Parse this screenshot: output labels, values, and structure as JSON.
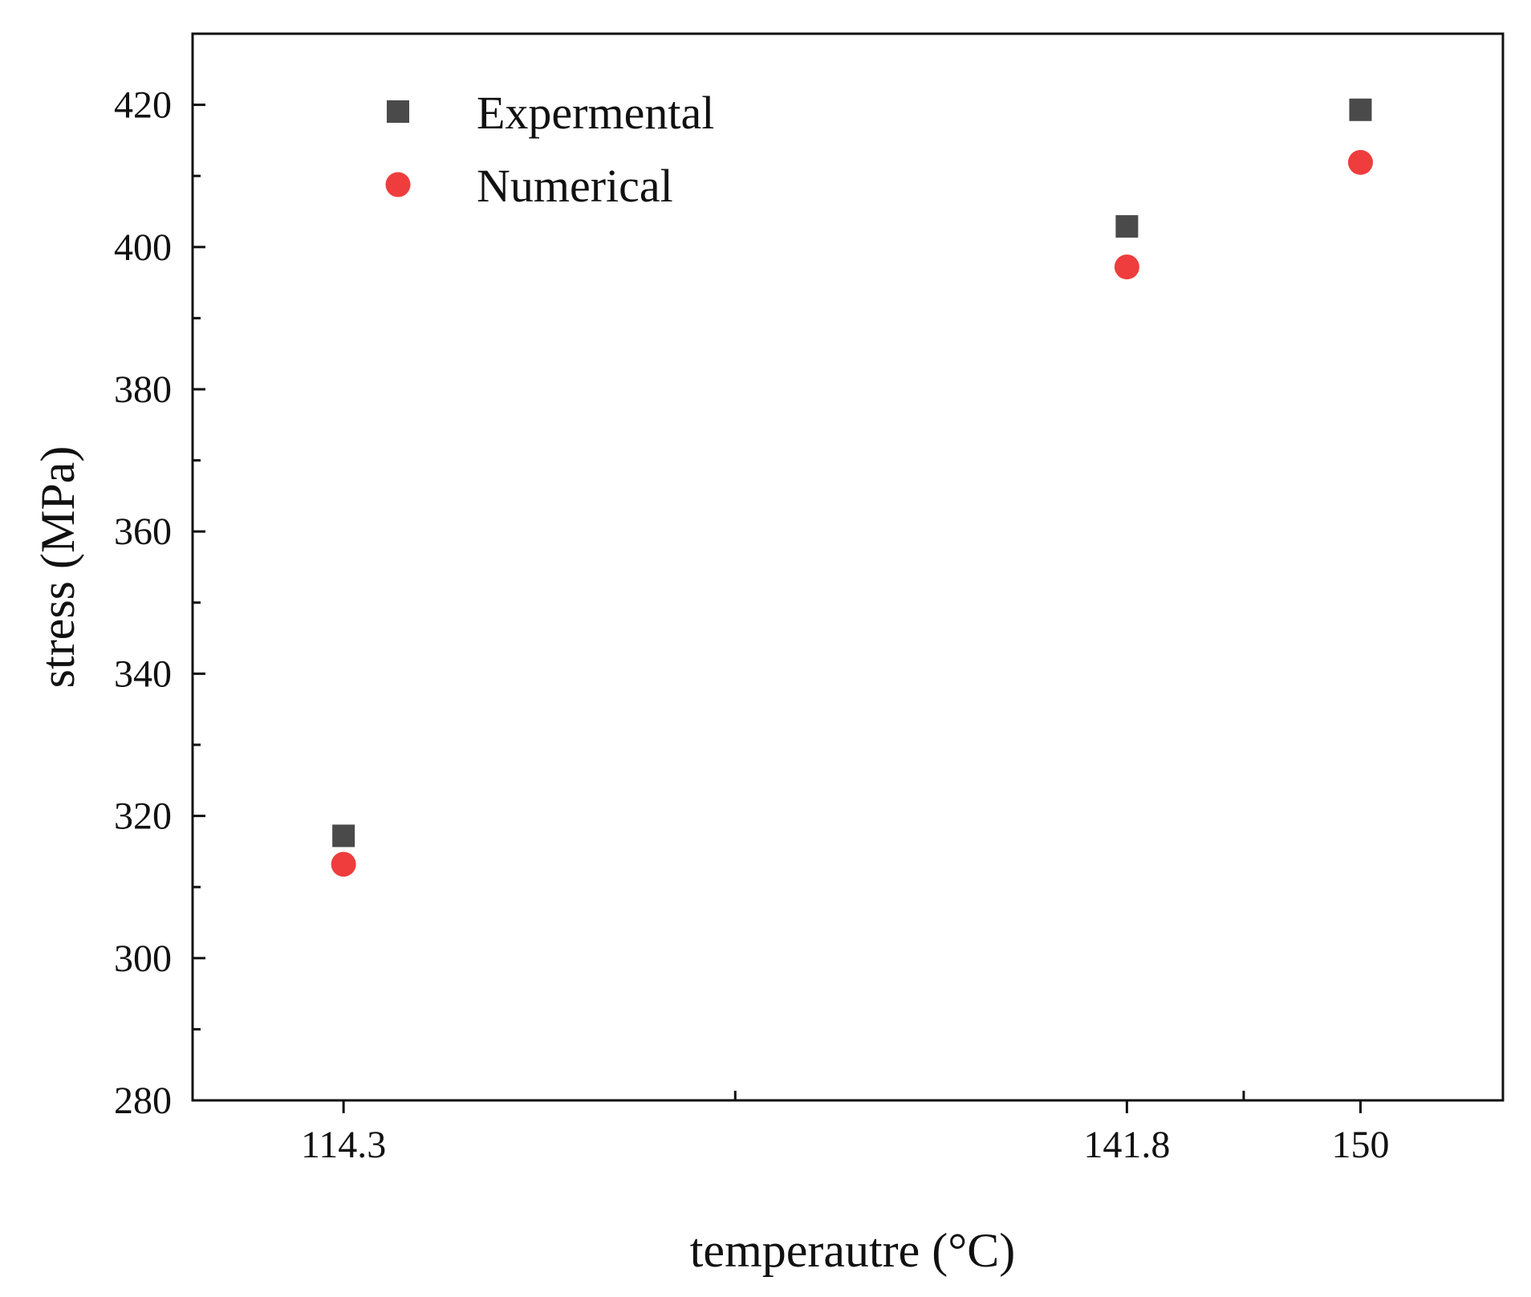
{
  "chart_data": {
    "type": "scatter",
    "title": "",
    "xlabel": "temperautre (°C)",
    "ylabel": "stress (MPa)",
    "xlim": [
      109.0,
      155.0
    ],
    "ylim": [
      280,
      430
    ],
    "x_ticks": [
      114.3,
      141.8,
      150
    ],
    "x_tick_labels": [
      "114.3",
      "141.8",
      "150"
    ],
    "x_minor_ticks": [
      128.05,
      145.9
    ],
    "y_ticks": [
      280,
      300,
      320,
      340,
      360,
      380,
      400,
      420
    ],
    "y_tick_labels": [
      "280",
      "300",
      "320",
      "340",
      "360",
      "380",
      "400",
      "420"
    ],
    "y_minor_ticks": [
      290,
      310,
      330,
      350,
      370,
      390,
      410
    ],
    "grid": false,
    "legend_position": "top-left",
    "series": [
      {
        "name": "Expermental",
        "marker": "square",
        "color": "#4a4a4a",
        "x": [
          114.3,
          141.8,
          150
        ],
        "values": [
          317.2,
          402.9,
          419.3
        ]
      },
      {
        "name": "Numerical",
        "marker": "circle",
        "color": "#ef3d3d",
        "x": [
          114.3,
          141.8,
          150
        ],
        "values": [
          313.2,
          397.2,
          411.9
        ]
      }
    ]
  }
}
